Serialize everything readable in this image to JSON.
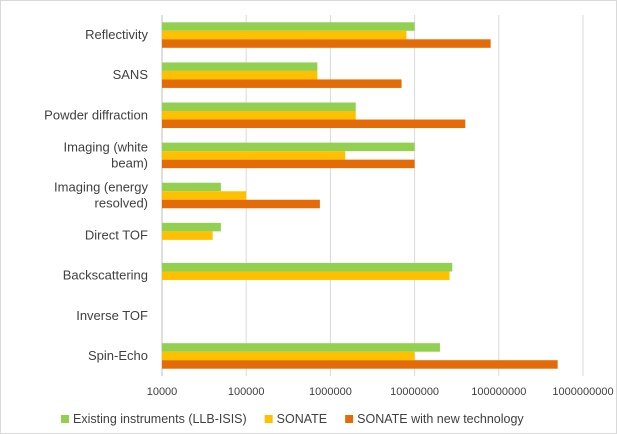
{
  "chart_data": {
    "type": "bar",
    "orientation": "horizontal",
    "x_scale": "log",
    "xlim": [
      10000,
      1000000000
    ],
    "x_ticks": [
      10000,
      100000,
      1000000,
      10000000,
      100000000,
      1000000000
    ],
    "x_tick_labels": [
      "10000",
      "100000",
      "1000000",
      "10000000",
      "100000000",
      "1000000000"
    ],
    "grid": "vertical",
    "legend_position": "bottom",
    "category_labels": [
      [
        "Reflectivity"
      ],
      [
        "SANS"
      ],
      [
        "Powder diffraction"
      ],
      [
        "Imaging (white",
        "beam)"
      ],
      [
        "Imaging (energy",
        "resolved)"
      ],
      [
        "Direct TOF"
      ],
      [
        "Backscattering"
      ],
      [
        "Inverse TOF"
      ],
      [
        "Spin-Echo"
      ]
    ],
    "series": [
      {
        "name": "Existing instruments (LLB-ISIS)",
        "color": "#92d050",
        "values": [
          10000000,
          700000,
          2000000,
          10000000,
          50000,
          50000,
          28000000,
          null,
          20000000
        ]
      },
      {
        "name": "SONATE",
        "color": "#ffc000",
        "values": [
          8000000,
          700000,
          2000000,
          1500000,
          100000,
          40000,
          26000000,
          null,
          10000000
        ]
      },
      {
        "name": "SONATE with new technology",
        "color": "#e36c09",
        "values": [
          80000000,
          7000000,
          40000000,
          10000000,
          750000,
          null,
          null,
          null,
          500000000
        ]
      }
    ]
  }
}
